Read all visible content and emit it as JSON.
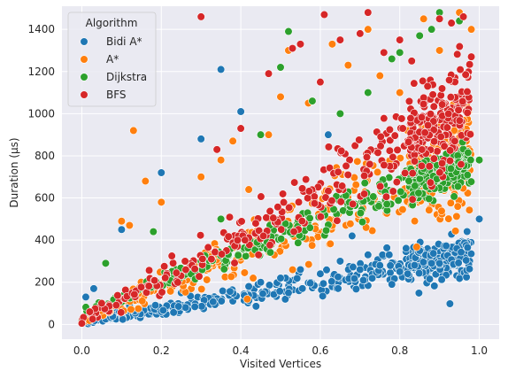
{
  "chart_data": {
    "type": "scatter",
    "xlabel": "Visited Vertices",
    "ylabel": "Duration (μs)",
    "xlim": [
      -0.05,
      1.05
    ],
    "ylim": [
      -70,
      1510
    ],
    "xticks": [
      "0.0",
      "0.2",
      "0.4",
      "0.6",
      "0.8",
      "1.0"
    ],
    "xtick_values": [
      0.0,
      0.2,
      0.4,
      0.6,
      0.8,
      1.0
    ],
    "yticks": [
      "0",
      "200",
      "400",
      "600",
      "800",
      "1000",
      "1200",
      "1400"
    ],
    "ytick_values": [
      0,
      200,
      400,
      600,
      800,
      1000,
      1200,
      1400
    ],
    "grid": true,
    "background": "#eaeaf2",
    "legend": {
      "title": "Algorithm",
      "placement": "top-left"
    },
    "series": [
      {
        "name": "Bidi A*",
        "color": "#1f77b4",
        "trend": "y ≈ 10 + 320·x, spread widening with x",
        "points": [
          [
            0.0,
            5
          ],
          [
            0.01,
            130
          ],
          [
            0.02,
            40
          ],
          [
            0.03,
            170
          ],
          [
            0.05,
            60
          ],
          [
            0.08,
            80
          ],
          [
            0.1,
            450
          ],
          [
            0.12,
            90
          ],
          [
            0.15,
            120
          ],
          [
            0.2,
            720
          ],
          [
            0.25,
            150
          ],
          [
            0.3,
            880
          ],
          [
            0.35,
            1210
          ],
          [
            0.4,
            1010
          ],
          [
            0.42,
            180
          ],
          [
            0.45,
            200
          ],
          [
            0.5,
            220
          ],
          [
            0.52,
            150
          ],
          [
            0.55,
            260
          ],
          [
            0.6,
            240
          ],
          [
            0.62,
            900
          ],
          [
            0.65,
            300
          ],
          [
            0.68,
            420
          ],
          [
            0.7,
            260
          ],
          [
            0.72,
            330
          ],
          [
            0.75,
            280
          ],
          [
            0.78,
            190
          ],
          [
            0.8,
            250
          ],
          [
            0.82,
            240
          ],
          [
            0.85,
            350
          ],
          [
            0.88,
            290
          ],
          [
            0.9,
            290
          ],
          [
            1.0,
            500
          ]
        ]
      },
      {
        "name": "A*",
        "color": "#ff7f0e",
        "trend": "y ≈ 10 + 820·x, wide spread",
        "points": [
          [
            0.0,
            10
          ],
          [
            0.1,
            490
          ],
          [
            0.12,
            470
          ],
          [
            0.13,
            920
          ],
          [
            0.16,
            680
          ],
          [
            0.2,
            580
          ],
          [
            0.3,
            700
          ],
          [
            0.35,
            780
          ],
          [
            0.38,
            870
          ],
          [
            0.42,
            640
          ],
          [
            0.47,
            900
          ],
          [
            0.5,
            1080
          ],
          [
            0.52,
            1300
          ],
          [
            0.57,
            1050
          ],
          [
            0.63,
            1330
          ],
          [
            0.67,
            1230
          ],
          [
            0.72,
            1400
          ],
          [
            0.75,
            1180
          ],
          [
            0.8,
            1100
          ],
          [
            0.86,
            1450
          ],
          [
            0.9,
            1300
          ],
          [
            0.95,
            1480
          ],
          [
            0.98,
            1400
          ]
        ]
      },
      {
        "name": "Dijkstra",
        "color": "#2ca02c",
        "trend": "y ≈ 60 + 730·x, tighter band",
        "points": [
          [
            0.0,
            20
          ],
          [
            0.06,
            290
          ],
          [
            0.18,
            440
          ],
          [
            0.3,
            300
          ],
          [
            0.35,
            500
          ],
          [
            0.45,
            900
          ],
          [
            0.5,
            1220
          ],
          [
            0.52,
            1390
          ],
          [
            0.58,
            1060
          ],
          [
            0.65,
            1000
          ],
          [
            0.72,
            1100
          ],
          [
            0.78,
            1260
          ],
          [
            0.8,
            1290
          ],
          [
            0.85,
            1370
          ],
          [
            0.88,
            1400
          ],
          [
            0.9,
            1480
          ],
          [
            0.95,
            1440
          ],
          [
            1.0,
            780
          ]
        ]
      },
      {
        "name": "BFS",
        "color": "#d62728",
        "trend": "y ≈ 20 + 1050·x^1.05, wide spread",
        "points": [
          [
            0.0,
            5
          ],
          [
            0.02,
            60
          ],
          [
            0.05,
            100
          ],
          [
            0.3,
            1460
          ],
          [
            0.34,
            830
          ],
          [
            0.4,
            930
          ],
          [
            0.47,
            1190
          ],
          [
            0.53,
            1310
          ],
          [
            0.55,
            1330
          ],
          [
            0.6,
            1150
          ],
          [
            0.61,
            1470
          ],
          [
            0.65,
            1350
          ],
          [
            0.7,
            1380
          ],
          [
            0.72,
            1480
          ],
          [
            0.76,
            1290
          ],
          [
            0.8,
            1350
          ],
          [
            0.83,
            1250
          ],
          [
            0.87,
            1130
          ],
          [
            0.9,
            1450
          ],
          [
            0.93,
            1430
          ],
          [
            0.96,
            1460
          ],
          [
            0.98,
            1270
          ]
        ]
      }
    ]
  }
}
